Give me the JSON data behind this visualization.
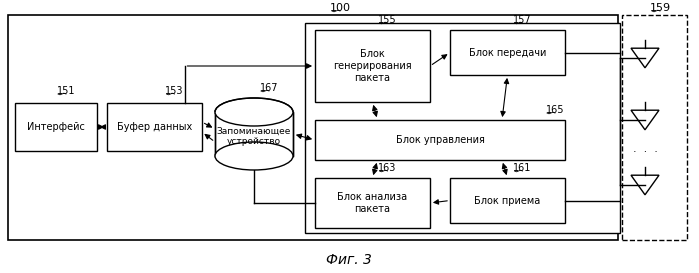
{
  "title": "Фиг. 3",
  "label_100": "100",
  "label_159": "159",
  "label_151": "151",
  "label_153": "153",
  "label_155": "155",
  "label_157": "157",
  "label_165": "165",
  "label_167": "167",
  "label_163": "163",
  "label_161": "161",
  "text_interface": "Интерфейс",
  "text_buffer": "Буфер данных",
  "text_memory": "Запоминающее\nустройство",
  "text_gen": "Блок\nгенерирования\nпакета",
  "text_tx": "Блок передачи",
  "text_ctrl": "Блок управления",
  "text_analysis": "Блок анализа\nпакета",
  "text_rx": "Блок приема",
  "bg_color": "#ffffff",
  "fig_width": 6.99,
  "fig_height": 2.73
}
